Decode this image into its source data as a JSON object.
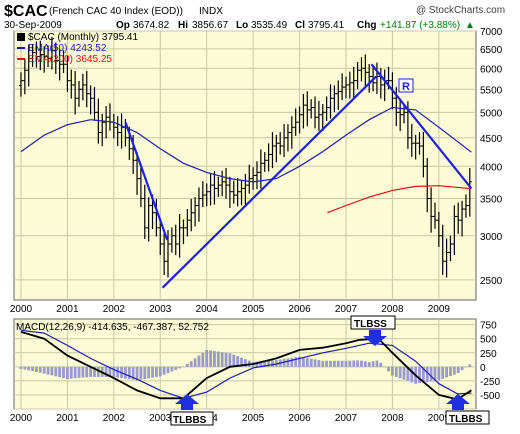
{
  "header": {
    "symbol": "$CAC",
    "name": "(French CAC 40 Index (EOD))",
    "exchange": "INDX",
    "watermark": "@ StockCharts.com",
    "date": "30-Sep-2009",
    "open_label": "Op",
    "open": "3674.82",
    "high_label": "Hi",
    "high": "3856.67",
    "low_label": "Lo",
    "low": "3535.49",
    "close_label": "Cl",
    "close": "3795.41",
    "change_label": "Chg",
    "change": "+141.87 (+3.88%)",
    "change_arrow": "▲"
  },
  "legend": {
    "price": "$CAC (Monthly) 3795.41",
    "ema50": "EMA(50) 4243.52",
    "ema200": "EMA(200) 3645.25"
  },
  "colors": {
    "background": "#fbfbd5",
    "bar": "#000000",
    "ema50": "#1c1cb4",
    "ema200": "#e01010",
    "trend": "#2020e0",
    "histogram": "#9a9acc",
    "grid": "#c8c8a8",
    "change": "#008000"
  },
  "annotations": {
    "r_label": "R",
    "tlbss_top": "TLBSS",
    "tlbss_bottom_left": "TLBBS",
    "tlbss_bottom_right": "TLBBS"
  },
  "chart_data": [
    {
      "type": "ohlc",
      "panel": "price",
      "title": "$CAC (French CAC 40 Index (EOD))",
      "x_unit": "year (decimal)",
      "xlim": [
        1999.85,
        2009.8
      ],
      "ylim": [
        2300,
        7000
      ],
      "y_scale": "log",
      "y_ticks": [
        2500,
        3000,
        3500,
        4000,
        4500,
        5000,
        5500,
        6000,
        6500,
        7000
      ],
      "x_tick_labels": [
        "2000",
        "2001",
        "2002",
        "2003",
        "2004",
        "2005",
        "2006",
        "2007",
        "2008",
        "2009"
      ],
      "grid": true,
      "legend_position": "top-left",
      "closes": [
        5700,
        5950,
        6250,
        6400,
        6300,
        6350,
        6300,
        6250,
        6450,
        6200,
        6100,
        6100,
        5700,
        5600,
        5300,
        5500,
        5600,
        5400,
        5300,
        5000,
        4600,
        4800,
        4900,
        4800,
        4700,
        4600,
        4700,
        4500,
        4300,
        4100,
        3800,
        3500,
        3100,
        3400,
        3300,
        3100,
        2900,
        2700,
        2900,
        3000,
        2900,
        3100,
        3100,
        3200,
        3300,
        3400,
        3500,
        3550,
        3600,
        3700,
        3650,
        3700,
        3750,
        3700,
        3600,
        3550,
        3600,
        3650,
        3700,
        3800,
        3850,
        3900,
        4050,
        4100,
        4200,
        4350,
        4400,
        4350,
        4500,
        4600,
        4700,
        4800,
        4950,
        5150,
        5050,
        5100,
        4900,
        4950,
        5000,
        5100,
        5300,
        5400,
        5450,
        5550,
        5600,
        5650,
        5700,
        5950,
        6000,
        5900,
        5800,
        5650,
        5800,
        5600,
        5700,
        5700,
        5300,
        5000,
        4950,
        5000,
        4500,
        4400,
        4400,
        4350,
        4000,
        3500,
        3250,
        3200,
        3000,
        2700,
        2800,
        2900,
        3250,
        3200,
        3350,
        3400,
        3750
      ],
      "series": [
        {
          "name": "EMA(50)",
          "x": [
            2000.0,
            2000.5,
            2001.0,
            2001.5,
            2002.0,
            2002.5,
            2003.0,
            2003.5,
            2004.0,
            2004.5,
            2005.0,
            2005.5,
            2006.0,
            2006.5,
            2007.0,
            2007.5,
            2008.0,
            2008.5,
            2009.0,
            2009.7
          ],
          "values": [
            4250,
            4550,
            4750,
            4850,
            4800,
            4600,
            4300,
            4050,
            3900,
            3800,
            3750,
            3800,
            4000,
            4250,
            4550,
            4850,
            5100,
            5050,
            4700,
            4240
          ]
        },
        {
          "name": "EMA(200)",
          "x": [
            2006.6,
            2007.0,
            2007.5,
            2008.0,
            2008.5,
            2009.0,
            2009.7
          ],
          "values": [
            3300,
            3400,
            3520,
            3620,
            3680,
            3690,
            3645
          ]
        }
      ],
      "trendlines": [
        {
          "x": [
            2002.25,
            2003.15
          ],
          "y": [
            4800,
            2950
          ]
        },
        {
          "x": [
            2003.05,
            2007.65
          ],
          "y": [
            2420,
            5800
          ]
        },
        {
          "x": [
            2007.55,
            2009.7
          ],
          "y": [
            6100,
            3650
          ]
        }
      ]
    },
    {
      "type": "line",
      "panel": "macd",
      "title": "MACD(12,26,9) -414.635, -467.387, 52.752",
      "xlim": [
        1999.85,
        2009.8
      ],
      "ylim": [
        -750,
        850
      ],
      "y_ticks": [
        -750,
        -500,
        -250,
        0,
        250,
        500,
        750
      ],
      "y_tick_labels": [
        "",
        "-500",
        "-250",
        "0",
        "250",
        "500",
        "750"
      ],
      "x_tick_labels": [
        "2000",
        "2001",
        "2002",
        "2003",
        "2004",
        "2005",
        "2006",
        "2007",
        "2008",
        "2009"
      ],
      "series": [
        {
          "name": "MACD",
          "x": [
            2000.0,
            2000.5,
            2001.0,
            2001.5,
            2002.0,
            2002.5,
            2003.0,
            2003.5,
            2004.0,
            2004.5,
            2005.0,
            2005.5,
            2006.0,
            2006.5,
            2007.0,
            2007.3,
            2007.7,
            2008.0,
            2008.5,
            2009.0,
            2009.4,
            2009.7
          ],
          "values": [
            620,
            500,
            200,
            0,
            -200,
            -420,
            -560,
            -560,
            -200,
            0,
            50,
            150,
            300,
            340,
            420,
            480,
            500,
            250,
            -150,
            -500,
            -580,
            -415
          ]
        },
        {
          "name": "Signal",
          "x": [
            2000.0,
            2000.5,
            2001.0,
            2001.5,
            2002.0,
            2002.5,
            2003.0,
            2003.5,
            2004.0,
            2004.5,
            2005.0,
            2005.5,
            2006.0,
            2006.5,
            2007.0,
            2007.5,
            2008.0,
            2008.5,
            2009.0,
            2009.4,
            2009.7
          ],
          "values": [
            650,
            600,
            380,
            150,
            -50,
            -220,
            -420,
            -560,
            -450,
            -200,
            -20,
            50,
            150,
            250,
            330,
            420,
            380,
            100,
            -300,
            -480,
            -467
          ]
        }
      ]
    }
  ]
}
